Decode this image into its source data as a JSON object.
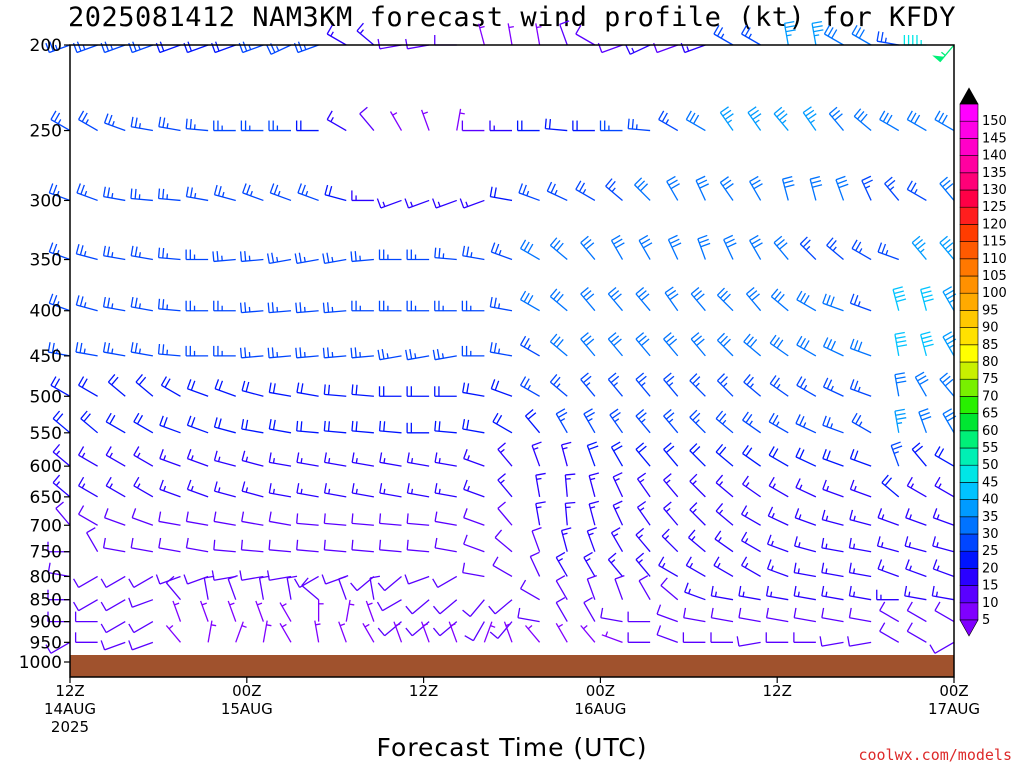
{
  "chart_data": {
    "type": "wind-barb profile",
    "title": "2025081412 NAM3KM forecast wind profile (kt) for KFDY",
    "xlabel": "Forecast Time (UTC)",
    "ylabel": "",
    "y_ticks": [
      200,
      250,
      300,
      350,
      400,
      450,
      500,
      550,
      600,
      650,
      700,
      750,
      800,
      850,
      900,
      950,
      1000
    ],
    "ylim": [
      1000,
      200
    ],
    "y_scale": "log-pressure (hPa)",
    "x_hours_range": [
      0,
      60
    ],
    "x_ticks": [
      {
        "hour": 0,
        "time": "12Z",
        "date": "14AUG",
        "year": "2025"
      },
      {
        "hour": 12,
        "time": "00Z",
        "date": "15AUG",
        "year": ""
      },
      {
        "hour": 24,
        "time": "12Z",
        "date": "",
        "year": ""
      },
      {
        "hour": 36,
        "time": "00Z",
        "date": "16AUG",
        "year": ""
      },
      {
        "hour": 48,
        "time": "12Z",
        "date": "",
        "year": ""
      },
      {
        "hour": 60,
        "time": "00Z",
        "date": "17AUG",
        "year": ""
      }
    ],
    "colorbar": {
      "units": "kt",
      "levels": [
        5,
        10,
        15,
        20,
        25,
        30,
        35,
        40,
        45,
        50,
        55,
        60,
        65,
        70,
        75,
        80,
        85,
        90,
        95,
        100,
        105,
        110,
        115,
        120,
        125,
        130,
        135,
        140,
        145,
        150
      ],
      "colors": [
        "#8000ff",
        "#5a00ff",
        "#2a00ff",
        "#0014ff",
        "#0046ff",
        "#0073ff",
        "#009bff",
        "#00c3ff",
        "#00e6e6",
        "#00f0b4",
        "#00f078",
        "#00e632",
        "#28f000",
        "#78f000",
        "#c8f000",
        "#ffff00",
        "#ffe100",
        "#ffc800",
        "#ffaa00",
        "#ff9100",
        "#ff7800",
        "#ff5a00",
        "#ff3c00",
        "#ff1e1e",
        "#ff0046",
        "#ff0078",
        "#ff00a0",
        "#ff00c8",
        "#ff00e6",
        "#ff00ff"
      ],
      "below_color": "#8000ff",
      "above_color": "#000000"
    },
    "ground_color": "#a0522d",
    "series": [
      {
        "level": 200,
        "dir": [
          250,
          250,
          250,
          250,
          250,
          250,
          250,
          250,
          245,
          250,
          300,
          310,
          260,
          260,
          270,
          345,
          350,
          350,
          340,
          300,
          250,
          245,
          250,
          250,
          300,
          300,
          350,
          350,
          300,
          300,
          280,
          270,
          220
        ],
        "spd": [
          25,
          25,
          25,
          25,
          20,
          20,
          20,
          25,
          25,
          25,
          15,
          15,
          10,
          10,
          10,
          5,
          5,
          5,
          10,
          10,
          10,
          15,
          10,
          15,
          25,
          25,
          35,
          35,
          30,
          30,
          25,
          45,
          55
        ]
      },
      {
        "level": 250,
        "dir": [
          300,
          300,
          290,
          280,
          280,
          275,
          270,
          270,
          270,
          270,
          300,
          320,
          330,
          340,
          10,
          270,
          270,
          270,
          275,
          270,
          270,
          275,
          300,
          300,
          325,
          325,
          320,
          325,
          320,
          310,
          300,
          300,
          300
        ],
        "spd": [
          25,
          25,
          25,
          25,
          25,
          25,
          25,
          25,
          25,
          20,
          15,
          10,
          5,
          5,
          5,
          10,
          15,
          20,
          20,
          20,
          25,
          25,
          25,
          30,
          35,
          35,
          35,
          35,
          30,
          30,
          30,
          30,
          30
        ]
      },
      {
        "level": 300,
        "dir": [
          290,
          290,
          280,
          275,
          275,
          280,
          285,
          290,
          290,
          290,
          285,
          270,
          250,
          250,
          250,
          250,
          280,
          290,
          295,
          300,
          310,
          315,
          330,
          335,
          325,
          330,
          345,
          345,
          340,
          335,
          320,
          300,
          320
        ],
        "spd": [
          25,
          25,
          25,
          25,
          25,
          25,
          25,
          25,
          25,
          25,
          20,
          15,
          15,
          15,
          15,
          15,
          20,
          25,
          25,
          25,
          25,
          30,
          30,
          30,
          30,
          30,
          30,
          30,
          30,
          25,
          25,
          25,
          30
        ]
      },
      {
        "level": 350,
        "dir": [
          290,
          285,
          280,
          280,
          275,
          270,
          265,
          265,
          260,
          260,
          260,
          265,
          270,
          270,
          275,
          280,
          290,
          300,
          310,
          320,
          330,
          330,
          335,
          340,
          335,
          330,
          320,
          315,
          310,
          300,
          290,
          320,
          320
        ],
        "spd": [
          25,
          25,
          25,
          25,
          25,
          25,
          25,
          25,
          25,
          25,
          25,
          25,
          25,
          25,
          25,
          25,
          25,
          30,
          30,
          30,
          30,
          30,
          30,
          30,
          30,
          30,
          30,
          25,
          25,
          25,
          25,
          35,
          35
        ]
      },
      {
        "level": 400,
        "dir": [
          290,
          285,
          280,
          280,
          275,
          270,
          270,
          265,
          265,
          265,
          265,
          270,
          270,
          270,
          270,
          270,
          280,
          300,
          310,
          320,
          320,
          320,
          325,
          320,
          315,
          320,
          310,
          300,
          290,
          290,
          345,
          345,
          330
        ],
        "spd": [
          25,
          25,
          25,
          25,
          25,
          25,
          25,
          25,
          25,
          25,
          25,
          25,
          25,
          25,
          25,
          25,
          25,
          30,
          30,
          30,
          30,
          30,
          30,
          30,
          30,
          30,
          30,
          30,
          30,
          25,
          40,
          40,
          35
        ]
      },
      {
        "level": 450,
        "dir": [
          280,
          280,
          280,
          280,
          275,
          270,
          270,
          265,
          265,
          265,
          265,
          265,
          260,
          260,
          260,
          270,
          280,
          300,
          310,
          320,
          320,
          320,
          320,
          320,
          315,
          310,
          305,
          300,
          295,
          290,
          350,
          345,
          330
        ],
        "spd": [
          25,
          25,
          25,
          25,
          25,
          25,
          25,
          25,
          25,
          25,
          25,
          25,
          25,
          25,
          25,
          25,
          25,
          25,
          30,
          30,
          30,
          30,
          30,
          30,
          30,
          30,
          30,
          30,
          30,
          30,
          40,
          40,
          35
        ]
      },
      {
        "level": 500,
        "dir": [
          300,
          300,
          310,
          310,
          300,
          290,
          290,
          285,
          280,
          280,
          275,
          275,
          270,
          270,
          270,
          280,
          290,
          300,
          310,
          320,
          320,
          320,
          320,
          315,
          315,
          310,
          305,
          300,
          295,
          290,
          350,
          330,
          320
        ],
        "spd": [
          20,
          20,
          20,
          20,
          20,
          20,
          20,
          20,
          20,
          20,
          20,
          20,
          20,
          20,
          20,
          20,
          20,
          25,
          25,
          25,
          25,
          25,
          25,
          25,
          25,
          25,
          25,
          25,
          25,
          25,
          30,
          30,
          30
        ]
      },
      {
        "level": 550,
        "dir": [
          310,
          310,
          300,
          300,
          290,
          290,
          285,
          280,
          280,
          275,
          275,
          275,
          275,
          270,
          275,
          280,
          300,
          320,
          330,
          330,
          325,
          320,
          320,
          315,
          310,
          305,
          300,
          295,
          290,
          300,
          350,
          340,
          330
        ],
        "spd": [
          20,
          20,
          20,
          20,
          20,
          20,
          20,
          20,
          20,
          20,
          20,
          20,
          20,
          20,
          20,
          20,
          20,
          20,
          25,
          25,
          25,
          25,
          25,
          25,
          25,
          25,
          25,
          25,
          25,
          25,
          35,
          30,
          30
        ]
      },
      {
        "level": 600,
        "dir": [
          310,
          300,
          300,
          300,
          290,
          290,
          285,
          285,
          280,
          280,
          280,
          280,
          280,
          280,
          280,
          290,
          320,
          340,
          345,
          340,
          330,
          320,
          320,
          315,
          310,
          305,
          300,
          295,
          290,
          290,
          340,
          320,
          300
        ],
        "spd": [
          15,
          15,
          15,
          15,
          15,
          15,
          15,
          15,
          15,
          15,
          15,
          15,
          15,
          15,
          15,
          15,
          15,
          15,
          15,
          20,
          20,
          20,
          20,
          20,
          20,
          20,
          20,
          20,
          20,
          20,
          25,
          20,
          20
        ]
      },
      {
        "level": 650,
        "dir": [
          310,
          300,
          300,
          300,
          290,
          290,
          285,
          285,
          280,
          280,
          280,
          280,
          280,
          280,
          280,
          290,
          320,
          350,
          355,
          345,
          335,
          325,
          320,
          315,
          310,
          305,
          300,
          295,
          290,
          290,
          310,
          300,
          300
        ],
        "spd": [
          15,
          15,
          15,
          15,
          15,
          15,
          15,
          15,
          15,
          15,
          15,
          15,
          15,
          15,
          15,
          15,
          15,
          15,
          15,
          15,
          15,
          15,
          15,
          15,
          15,
          15,
          15,
          15,
          15,
          15,
          20,
          15,
          15
        ]
      },
      {
        "level": 700,
        "dir": [
          320,
          300,
          290,
          290,
          280,
          280,
          280,
          280,
          280,
          275,
          275,
          275,
          275,
          275,
          280,
          290,
          320,
          350,
          355,
          345,
          335,
          325,
          320,
          315,
          310,
          300,
          295,
          290,
          285,
          285,
          290,
          290,
          290
        ],
        "spd": [
          10,
          10,
          10,
          10,
          10,
          10,
          10,
          10,
          10,
          10,
          10,
          10,
          10,
          10,
          10,
          10,
          10,
          15,
          15,
          15,
          15,
          15,
          15,
          15,
          15,
          15,
          15,
          15,
          15,
          15,
          15,
          15,
          15
        ]
      },
      {
        "level": 750,
        "dir": [
          270,
          330,
          280,
          280,
          280,
          280,
          275,
          275,
          275,
          275,
          275,
          275,
          275,
          275,
          280,
          290,
          310,
          340,
          345,
          340,
          330,
          320,
          315,
          310,
          305,
          300,
          290,
          285,
          280,
          280,
          285,
          285,
          285
        ],
        "spd": [
          10,
          10,
          10,
          10,
          10,
          10,
          10,
          10,
          10,
          10,
          10,
          10,
          10,
          10,
          10,
          10,
          10,
          10,
          15,
          15,
          15,
          15,
          15,
          15,
          15,
          15,
          15,
          15,
          15,
          15,
          15,
          15,
          15
        ]
      },
      {
        "level": 800,
        "dir": [
          280,
          240,
          240,
          240,
          250,
          250,
          260,
          260,
          260,
          240,
          250,
          230,
          230,
          250,
          240,
          280,
          300,
          335,
          330,
          330,
          320,
          320,
          300,
          300,
          300,
          300,
          290,
          280,
          280,
          280,
          290,
          290,
          290
        ],
        "spd": [
          10,
          10,
          10,
          10,
          10,
          10,
          10,
          10,
          10,
          10,
          10,
          10,
          10,
          10,
          10,
          10,
          10,
          10,
          15,
          15,
          15,
          15,
          15,
          15,
          15,
          15,
          15,
          15,
          15,
          15,
          15,
          15,
          15
        ]
      },
      {
        "level": 850,
        "dir": [
          270,
          240,
          240,
          250,
          320,
          350,
          340,
          350,
          350,
          310,
          340,
          350,
          240,
          230,
          230,
          220,
          230,
          300,
          330,
          340,
          340,
          330,
          310,
          290,
          280,
          280,
          280,
          280,
          280,
          280,
          270,
          280,
          280
        ],
        "spd": [
          10,
          10,
          10,
          10,
          10,
          10,
          10,
          10,
          10,
          10,
          10,
          10,
          10,
          10,
          10,
          10,
          10,
          10,
          10,
          10,
          10,
          10,
          10,
          15,
          15,
          15,
          15,
          15,
          15,
          15,
          15,
          15,
          15
        ]
      },
      {
        "level": 900,
        "dir": [
          270,
          270,
          240,
          240,
          340,
          340,
          340,
          340,
          330,
          360,
          10,
          340,
          230,
          230,
          230,
          210,
          220,
          280,
          330,
          330,
          280,
          270,
          290,
          280,
          280,
          280,
          280,
          280,
          280,
          280,
          300,
          300,
          300
        ],
        "spd": [
          10,
          10,
          10,
          10,
          5,
          5,
          5,
          5,
          5,
          5,
          5,
          5,
          10,
          10,
          10,
          10,
          10,
          10,
          10,
          10,
          10,
          10,
          10,
          10,
          10,
          10,
          10,
          10,
          10,
          10,
          10,
          10,
          10
        ]
      },
      {
        "level": 950,
        "dir": [
          240,
          270,
          250,
          250,
          320,
          10,
          20,
          10,
          330,
          350,
          340,
          330,
          340,
          340,
          340,
          20,
          340,
          320,
          330,
          320,
          290,
          270,
          290,
          270,
          270,
          260,
          270,
          270,
          260,
          260,
          300,
          300,
          240
        ],
        "spd": [
          10,
          10,
          10,
          10,
          5,
          5,
          5,
          5,
          5,
          5,
          5,
          5,
          5,
          5,
          5,
          5,
          5,
          5,
          5,
          5,
          5,
          10,
          10,
          10,
          10,
          10,
          10,
          10,
          10,
          10,
          10,
          10,
          10
        ]
      }
    ]
  },
  "footer": {
    "credit": "coolwx.com/models"
  }
}
